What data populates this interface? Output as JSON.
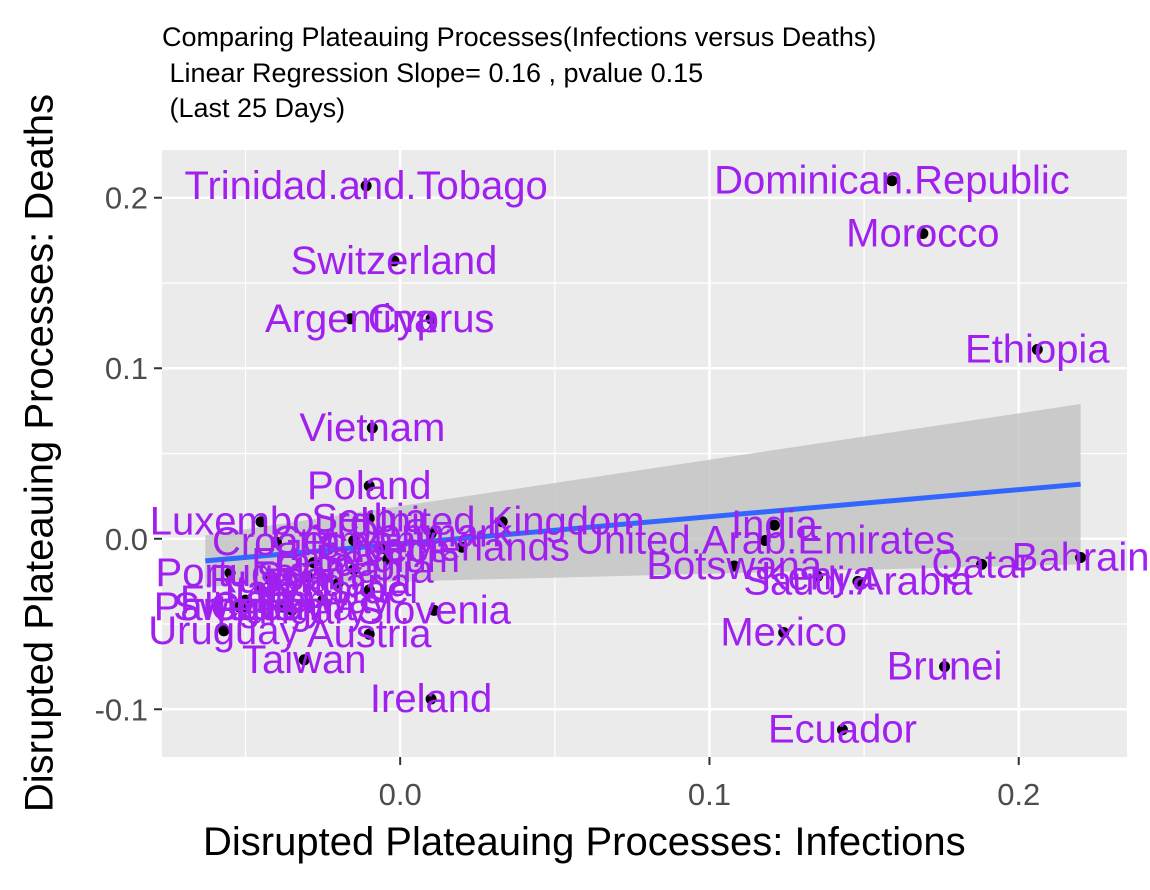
{
  "chart_data": {
    "type": "scatter",
    "title_lines": [
      "Comparing Plateauing Processes(Infections versus Deaths)",
      " Linear Regression Slope= 0.16 , pvalue 0.15",
      " (Last 25 Days)"
    ],
    "xlabel": "Disrupted Plateauing Processes: Infections",
    "ylabel": "Disrupted Plateauing Processes: Deaths",
    "xlim": [
      -0.077,
      0.235
    ],
    "ylim": [
      -0.128,
      0.228
    ],
    "x_ticks": [
      0.0,
      0.1,
      0.2
    ],
    "x_tick_labels": [
      "0.0",
      "0.1",
      "0.2"
    ],
    "y_ticks": [
      -0.1,
      0.0,
      0.1,
      0.2
    ],
    "y_tick_labels": [
      "-0.1",
      "0.0",
      "0.1",
      "0.2"
    ],
    "grid": true,
    "point_color": "#000000",
    "label_color": "#A020F0",
    "line_color": "#3366FF",
    "ribbon_color": "#C4C4C4",
    "panel_color": "#EBEBEB",
    "regression": {
      "x_start": -0.063,
      "x_end": 0.22,
      "y_start": -0.013,
      "y_end": 0.032,
      "ci_lower_end": -0.015,
      "ci_upper_end": 0.079,
      "ci_at_start": [
        -0.028,
        0.002
      ]
    },
    "points": [
      {
        "label": "Trinidad.and.Tobago",
        "x": -0.011,
        "y": 0.207
      },
      {
        "label": "Dominican.Republic",
        "x": 0.159,
        "y": 0.21
      },
      {
        "label": "Morocco",
        "x": 0.169,
        "y": 0.179
      },
      {
        "label": "Switzerland",
        "x": -0.002,
        "y": 0.163
      },
      {
        "label": "Argentina",
        "x": -0.016,
        "y": 0.129
      },
      {
        "label": "Cyprus",
        "x": 0.01,
        "y": 0.129
      },
      {
        "label": "Ethiopia",
        "x": 0.206,
        "y": 0.111
      },
      {
        "label": "Vietnam",
        "x": -0.009,
        "y": 0.065
      },
      {
        "label": "Poland",
        "x": -0.01,
        "y": 0.031
      },
      {
        "label": "Luxembourg",
        "x": -0.045,
        "y": 0.01
      },
      {
        "label": "Serbia",
        "x": -0.01,
        "y": 0.012
      },
      {
        "label": "Croatia",
        "x": -0.04,
        "y": -0.002
      },
      {
        "label": "Germany",
        "x": -0.015,
        "y": -0.001
      },
      {
        "label": "Denmark",
        "x": 0.01,
        "y": 0.003
      },
      {
        "label": "Greece",
        "x": -0.005,
        "y": -0.006
      },
      {
        "label": "United.Kingdom",
        "x": 0.033,
        "y": 0.01
      },
      {
        "label": "Netherlands",
        "x": 0.02,
        "y": -0.005
      },
      {
        "label": "Belgium",
        "x": -0.004,
        "y": -0.012
      },
      {
        "label": "France",
        "x": -0.028,
        "y": -0.014
      },
      {
        "label": "Romania",
        "x": -0.015,
        "y": -0.018
      },
      {
        "label": "Portugal",
        "x": -0.055,
        "y": -0.02
      },
      {
        "label": "Russia",
        "x": -0.042,
        "y": -0.024
      },
      {
        "label": "Spain",
        "x": -0.03,
        "y": -0.022
      },
      {
        "label": "Bulgaria",
        "x": -0.02,
        "y": -0.026
      },
      {
        "label": "Italy",
        "x": -0.045,
        "y": -0.03
      },
      {
        "label": "Israel",
        "x": -0.01,
        "y": -0.03
      },
      {
        "label": "Finland",
        "x": -0.05,
        "y": -0.036
      },
      {
        "label": "Norway",
        "x": -0.025,
        "y": -0.036
      },
      {
        "label": "Sweden",
        "x": -0.05,
        "y": -0.04
      },
      {
        "label": "Paraguay",
        "x": -0.052,
        "y": -0.04
      },
      {
        "label": "Hungary",
        "x": -0.035,
        "y": -0.042
      },
      {
        "label": "Czechia",
        "x": -0.038,
        "y": -0.04
      },
      {
        "label": "Slovenia",
        "x": 0.011,
        "y": -0.042
      },
      {
        "label": "Uruguay",
        "x": -0.057,
        "y": -0.054
      },
      {
        "label": "Austria",
        "x": -0.01,
        "y": -0.056
      },
      {
        "label": "Taiwan",
        "x": -0.031,
        "y": -0.071
      },
      {
        "label": "Ireland",
        "x": 0.01,
        "y": -0.094
      },
      {
        "label": "India",
        "x": 0.121,
        "y": 0.008
      },
      {
        "label": "United.Arab.Emirates",
        "x": 0.118,
        "y": -0.001
      },
      {
        "label": "Botswana",
        "x": 0.108,
        "y": -0.016
      },
      {
        "label": "Saudi.Arabia",
        "x": 0.148,
        "y": -0.025
      },
      {
        "label": "Kenya",
        "x": 0.135,
        "y": -0.022
      },
      {
        "label": "Qatar",
        "x": 0.188,
        "y": -0.015
      },
      {
        "label": "Bahrain",
        "x": 0.22,
        "y": -0.011
      },
      {
        "label": "Mexico",
        "x": 0.124,
        "y": -0.055
      },
      {
        "label": "Brunei",
        "x": 0.176,
        "y": -0.075
      },
      {
        "label": "Ecuador",
        "x": 0.143,
        "y": -0.112
      }
    ]
  }
}
